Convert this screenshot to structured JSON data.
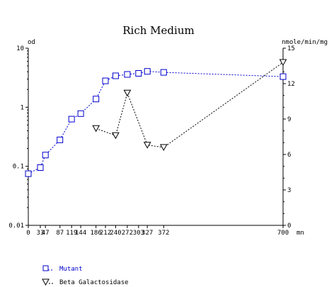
{
  "chart_data": {
    "type": "line",
    "title": "Rich Medium",
    "y_left_label": "od",
    "y_right_label": "nmole/min/mg",
    "x_unit_label": "mn",
    "x_ticks": [
      0,
      33,
      47,
      87,
      119,
      144,
      186,
      212,
      240,
      272,
      303,
      327,
      372,
      700
    ],
    "x_tick_labels": [
      "0",
      "33",
      "47",
      "87",
      "119",
      "144",
      "186",
      "212",
      "240",
      "272",
      "303",
      "327",
      "372",
      "700"
    ],
    "xlim": [
      0,
      700
    ],
    "y_left_scale": "log",
    "y_left_lim": [
      0.01,
      10
    ],
    "y_left_tick_labels": [
      "0.01",
      "0.1",
      "1",
      "10"
    ],
    "y_right_scale": "linear",
    "y_right_lim": [
      0,
      15
    ],
    "y_right_tick_labels": [
      "0",
      "3",
      "6",
      "9",
      "12",
      "15"
    ],
    "series": [
      {
        "name": "Mutant",
        "axis": "left",
        "color": "#0000cc",
        "marker": "square",
        "x": [
          0,
          33,
          47,
          87,
          119,
          144,
          186,
          212,
          240,
          272,
          303,
          327,
          372,
          700
        ],
        "y": [
          0.075,
          0.095,
          0.155,
          0.28,
          0.63,
          0.78,
          1.38,
          2.8,
          3.4,
          3.6,
          3.75,
          4.05,
          3.9,
          3.3
        ]
      },
      {
        "name": "Beta Galactosidase",
        "axis": "right",
        "color": "#000000",
        "marker": "triangle-down",
        "x": [
          186,
          240,
          272,
          327,
          372,
          700
        ],
        "y": [
          8.2,
          7.6,
          11.2,
          6.8,
          6.6,
          13.8
        ]
      }
    ],
    "legend_position": "bottom-left"
  }
}
